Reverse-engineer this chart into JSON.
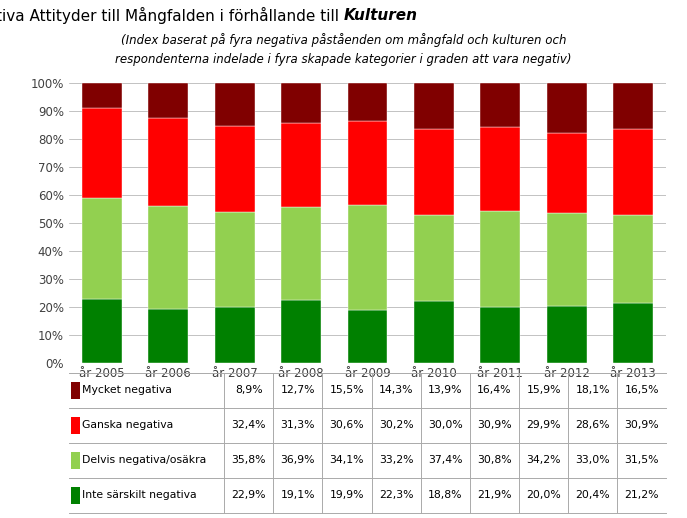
{
  "title_normal": "Index för Negativa Attityder till Mångfalden i förhållande till ",
  "title_bold": "Kulturen",
  "subtitle_line1": "(Index baserat på fyra negativa påståenden om mångfald och kulturen och",
  "subtitle_line2": "respondenterna indelade i fyra skapade kategorier i graden att vara negativ)",
  "years": [
    "år 2005",
    "år 2006",
    "år 2007",
    "år 2008",
    "år 2009",
    "år 2010",
    "år 2011",
    "år 2012",
    "år 2013"
  ],
  "categories": [
    "Inte särskilt negativa",
    "Delvis negativa/osäkra",
    "Ganska negativa",
    "Mycket negativa"
  ],
  "colors": [
    "#008000",
    "#92D050",
    "#FF0000",
    "#800000"
  ],
  "data": {
    "Inte särskilt negativa": [
      22.9,
      19.1,
      19.9,
      22.3,
      18.8,
      21.9,
      20.0,
      20.4,
      21.2
    ],
    "Delvis negativa/osäkra": [
      35.8,
      36.9,
      34.1,
      33.2,
      37.4,
      30.8,
      34.2,
      33.0,
      31.5
    ],
    "Ganska negativa": [
      32.4,
      31.3,
      30.6,
      30.2,
      30.0,
      30.9,
      29.9,
      28.6,
      30.9
    ],
    "Mycket negativa": [
      8.9,
      12.7,
      15.5,
      14.3,
      13.9,
      16.4,
      15.9,
      18.1,
      16.5
    ]
  },
  "table_rows": [
    [
      "Mycket negativa",
      "8,9%",
      "12,7%",
      "15,5%",
      "14,3%",
      "13,9%",
      "16,4%",
      "15,9%",
      "18,1%",
      "16,5%"
    ],
    [
      "Ganska negativa",
      "32,4%",
      "31,3%",
      "30,6%",
      "30,2%",
      "30,0%",
      "30,9%",
      "29,9%",
      "28,6%",
      "30,9%"
    ],
    [
      "Delvis negativa/osäkra",
      "35,8%",
      "36,9%",
      "34,1%",
      "33,2%",
      "37,4%",
      "30,8%",
      "34,2%",
      "33,0%",
      "31,5%"
    ],
    [
      "Inte särskilt negativa",
      "22,9%",
      "19,1%",
      "19,9%",
      "22,3%",
      "18,8%",
      "21,9%",
      "20,0%",
      "20,4%",
      "21,2%"
    ]
  ],
  "table_row_colors": [
    "#800000",
    "#FF0000",
    "#92D050",
    "#008000"
  ],
  "background_color": "#FFFFFF",
  "grid_color": "#AAAAAA",
  "text_color": "#404040"
}
